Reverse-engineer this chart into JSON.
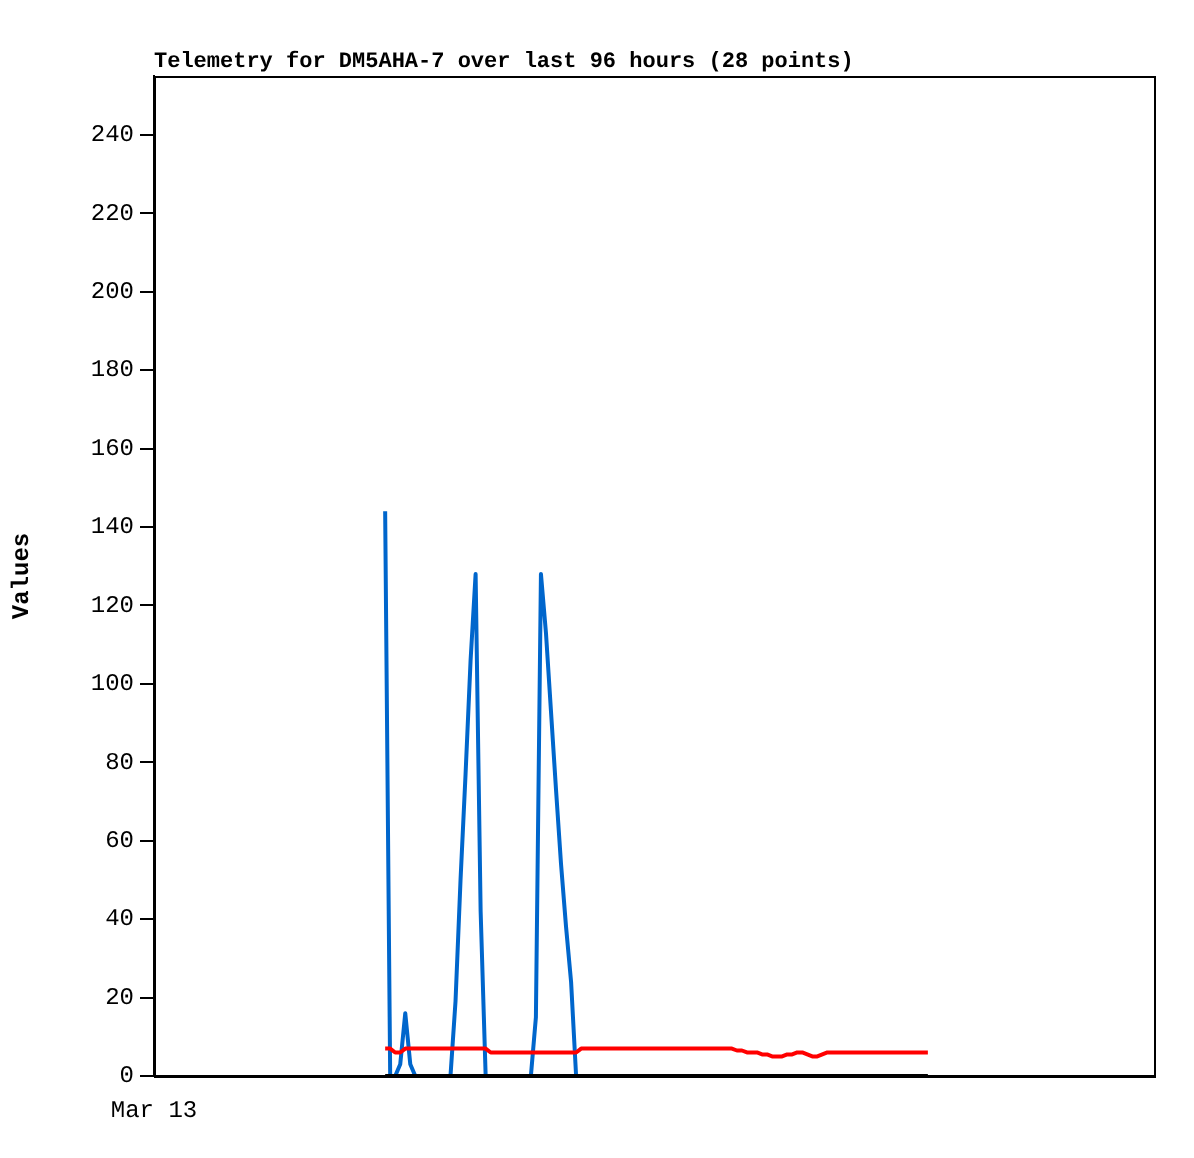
{
  "chart_data": {
    "type": "line",
    "title": "Telemetry for DM5AHA-7 over last 96 hours (28 points)",
    "ylabel": "Values",
    "categories": [
      "Mar 13",
      null,
      null,
      null,
      null,
      null,
      null,
      null,
      null,
      null,
      null,
      null,
      null,
      null,
      null,
      null,
      null,
      null,
      null,
      null,
      null,
      null,
      null,
      null,
      null,
      null,
      null,
      null,
      null,
      null,
      null,
      null,
      null,
      null,
      null,
      null,
      null,
      null,
      null,
      null,
      null,
      null,
      null,
      null,
      null,
      null,
      null,
      null,
      null,
      null,
      null,
      null,
      null,
      null,
      null,
      null,
      null,
      null,
      null,
      null,
      null,
      null,
      null,
      null,
      null,
      null,
      null,
      null,
      null,
      null,
      null,
      null,
      null,
      null,
      null,
      null,
      null,
      null,
      null,
      null,
      null,
      null,
      null,
      null,
      null,
      null,
      null,
      null,
      null,
      null,
      null,
      null,
      null,
      null,
      null,
      null,
      null,
      null,
      null,
      null,
      null,
      null,
      null,
      null,
      null,
      null,
      null,
      null,
      null,
      null,
      null,
      null,
      null,
      null,
      null,
      null,
      null,
      null,
      null,
      null,
      null,
      null,
      null,
      null,
      null,
      null,
      null,
      null,
      null,
      null,
      null,
      null,
      null,
      null,
      null,
      null,
      null,
      null,
      null,
      null,
      null,
      null,
      null,
      null,
      null,
      null,
      null,
      null,
      null,
      null,
      null,
      null,
      null,
      null,
      null,
      null,
      null,
      null,
      null,
      null,
      null,
      null,
      null,
      null,
      null,
      null,
      null,
      null,
      null,
      null,
      null,
      null,
      null,
      null,
      null,
      null,
      null,
      null,
      null,
      null,
      null,
      null,
      null,
      null,
      null,
      null,
      null,
      null,
      null,
      null,
      null,
      null,
      null,
      null,
      null,
      null,
      null,
      null,
      null,
      null
    ],
    "ylim": [
      0,
      255
    ],
    "yticks": [
      0,
      20,
      40,
      60,
      80,
      100,
      120,
      140,
      160,
      180,
      200,
      220,
      240
    ],
    "series": [
      {
        "color": "#000000",
        "values": [
          null,
          null,
          null,
          null,
          null,
          null,
          null,
          null,
          null,
          null,
          null,
          null,
          null,
          null,
          null,
          null,
          null,
          null,
          null,
          null,
          null,
          null,
          null,
          null,
          null,
          null,
          null,
          null,
          null,
          null,
          null,
          null,
          null,
          null,
          null,
          null,
          null,
          null,
          null,
          null,
          null,
          null,
          null,
          null,
          null,
          null,
          0,
          0,
          0,
          0,
          0,
          0,
          0,
          0,
          0,
          0,
          0,
          0,
          0,
          0,
          0,
          0,
          0,
          0,
          0,
          0,
          0,
          0,
          0,
          0,
          0,
          0,
          0,
          0,
          0,
          0,
          0,
          0,
          0,
          0,
          0,
          0,
          0,
          0,
          0,
          0,
          0,
          0,
          0,
          0,
          0,
          0,
          0,
          0,
          0,
          0,
          0,
          0,
          0,
          0,
          0,
          0,
          0,
          0,
          0,
          0,
          0,
          0,
          0,
          0,
          0,
          0,
          0,
          0,
          0,
          0,
          0,
          0,
          0,
          0,
          0,
          0,
          0,
          0,
          0,
          0,
          0,
          0,
          0,
          0,
          0,
          0,
          0,
          0,
          0,
          0,
          0,
          0,
          0,
          0,
          0,
          0,
          0,
          0,
          0,
          0,
          0,
          0,
          0,
          0,
          0,
          0,
          0,
          0,
          0,
          null,
          null,
          null,
          null,
          null,
          null,
          null,
          null,
          null,
          null,
          null,
          null,
          null,
          null,
          null,
          null,
          null,
          null,
          null,
          null,
          null,
          null,
          null,
          null,
          null,
          null,
          null,
          null,
          null,
          null,
          null,
          null,
          null,
          null,
          null,
          null,
          null,
          null,
          null,
          null,
          null,
          null,
          null,
          null,
          null
        ]
      },
      {
        "color": "#ff0000",
        "values": [
          null,
          null,
          null,
          null,
          null,
          null,
          null,
          null,
          null,
          null,
          null,
          null,
          null,
          null,
          null,
          null,
          null,
          null,
          null,
          null,
          null,
          null,
          null,
          null,
          null,
          null,
          null,
          null,
          null,
          null,
          null,
          null,
          null,
          null,
          null,
          null,
          null,
          null,
          null,
          null,
          null,
          null,
          null,
          null,
          null,
          null,
          7,
          7,
          6,
          6,
          7,
          7,
          7,
          7,
          7,
          7,
          7,
          7,
          7,
          7,
          7,
          7,
          7,
          7,
          7,
          7,
          7,
          6,
          6,
          6,
          6,
          6,
          6,
          6,
          6,
          6,
          6,
          6,
          6,
          6,
          6,
          6,
          6,
          6,
          6,
          7,
          7,
          7,
          7,
          7,
          7,
          7,
          7,
          7,
          7,
          7,
          7,
          7,
          7,
          7,
          7,
          7,
          7,
          7,
          7,
          7,
          7,
          7,
          7,
          7,
          7,
          7,
          7,
          7,
          7,
          7,
          6.5,
          6.5,
          6,
          6,
          6,
          5.5,
          5.5,
          5,
          5,
          5,
          5.5,
          5.5,
          6,
          6,
          5.5,
          5,
          5,
          5.5,
          6,
          6,
          6,
          6,
          6,
          6,
          6,
          6,
          6,
          6,
          6,
          6,
          6,
          6,
          6,
          6,
          6,
          6,
          6,
          6,
          6,
          null,
          null,
          null,
          null,
          null,
          null,
          null,
          null,
          null,
          null,
          null,
          null,
          null,
          null,
          null,
          null,
          null,
          null,
          null,
          null,
          null,
          null,
          null,
          null,
          null,
          null,
          null,
          null,
          null,
          null,
          null,
          null,
          null,
          null,
          null,
          null,
          null,
          null,
          null,
          null,
          null,
          null,
          null,
          null,
          null
        ]
      },
      {
        "color": "#0066cc",
        "values": [
          null,
          null,
          null,
          null,
          null,
          null,
          null,
          null,
          null,
          null,
          null,
          null,
          null,
          null,
          null,
          null,
          null,
          null,
          null,
          null,
          null,
          null,
          null,
          null,
          null,
          null,
          null,
          null,
          null,
          null,
          null,
          null,
          null,
          null,
          null,
          null,
          null,
          null,
          null,
          null,
          null,
          null,
          null,
          null,
          null,
          null,
          144,
          0,
          0,
          3,
          16,
          3,
          0,
          0,
          0,
          0,
          0,
          0,
          0,
          0,
          19,
          50,
          77,
          106,
          128,
          42,
          0,
          0,
          0,
          0,
          0,
          0,
          0,
          0,
          0,
          0,
          15,
          128,
          113,
          93,
          73,
          54,
          38,
          24,
          0,
          null,
          null,
          null,
          null,
          null,
          null,
          null,
          null,
          null,
          null,
          null,
          null,
          null,
          null,
          null,
          null,
          null,
          null,
          null,
          null,
          null,
          null,
          null,
          null,
          null,
          null,
          null,
          null,
          null,
          null,
          null,
          null,
          null,
          null,
          null,
          null,
          null,
          null,
          null,
          null,
          null,
          null,
          null,
          null,
          null,
          null,
          null,
          null,
          null,
          null,
          null,
          null,
          null,
          null,
          null,
          null,
          null,
          null,
          null,
          null,
          null,
          null,
          null,
          null,
          null,
          null,
          null,
          null,
          null,
          null,
          null,
          null,
          null,
          null,
          null,
          null,
          null,
          null,
          null,
          null,
          null,
          null,
          null,
          null,
          null,
          null,
          null,
          null,
          null,
          null,
          null,
          null,
          null,
          null,
          null,
          null,
          null,
          null,
          null,
          null,
          null,
          null,
          null,
          null,
          null,
          null,
          null,
          null,
          null,
          null,
          null,
          null,
          null,
          null,
          null
        ]
      }
    ]
  }
}
